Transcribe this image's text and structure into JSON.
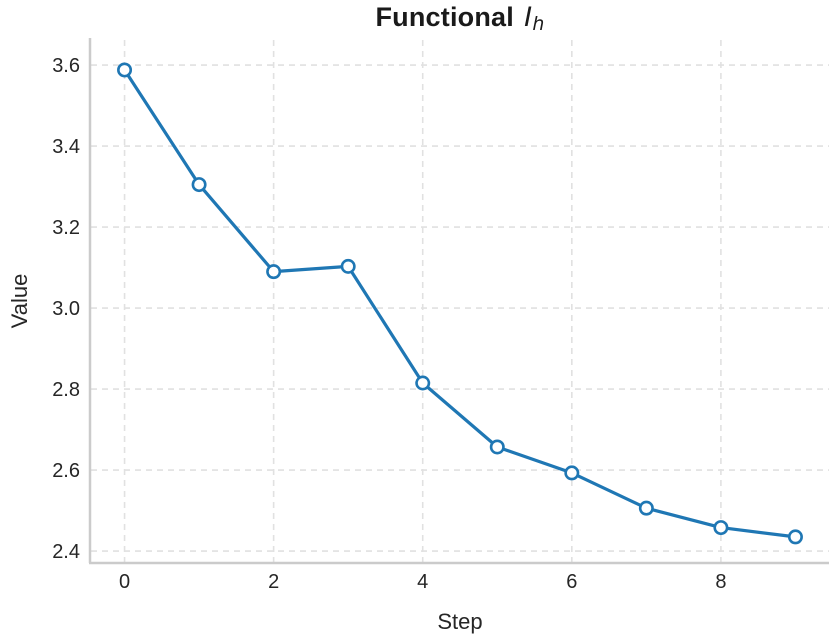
{
  "figure": {
    "title": {
      "main": "Functional",
      "math_base": "I",
      "math_sub": "h"
    }
  },
  "chart_data": {
    "type": "line",
    "title": "Functional I_h",
    "xlabel": "Step",
    "ylabel": "Value",
    "x": [
      0,
      1,
      2,
      3,
      4,
      5,
      6,
      7,
      8,
      9
    ],
    "series": [
      {
        "name": "Functional I_h",
        "values": [
          3.588,
          3.305,
          3.09,
          3.103,
          2.815,
          2.657,
          2.593,
          2.506,
          2.458,
          2.435
        ]
      }
    ],
    "xticks": {
      "values": [
        0,
        2,
        4,
        6,
        8
      ],
      "labels": [
        "0",
        "2",
        "4",
        "6",
        "8"
      ]
    },
    "yticks": {
      "values": [
        2.4,
        2.6,
        2.8,
        3.0,
        3.2,
        3.4,
        3.6
      ],
      "labels": [
        "2.4",
        "2.6",
        "2.8",
        "3.0",
        "3.2",
        "3.4",
        "3.6"
      ]
    },
    "xlim": [
      -0.45,
      9.45
    ],
    "ylim": [
      2.373,
      3.662
    ],
    "grid": {
      "visible": true,
      "style": "dashed",
      "color": "#e1e1e1"
    },
    "line_color": "#1f77b4",
    "marker": {
      "shape": "circle-open",
      "fill": "#ffffff",
      "edge": "#1f77b4"
    },
    "spine_color": "#cbcbcb",
    "text_color": "#262626",
    "legend": null
  }
}
